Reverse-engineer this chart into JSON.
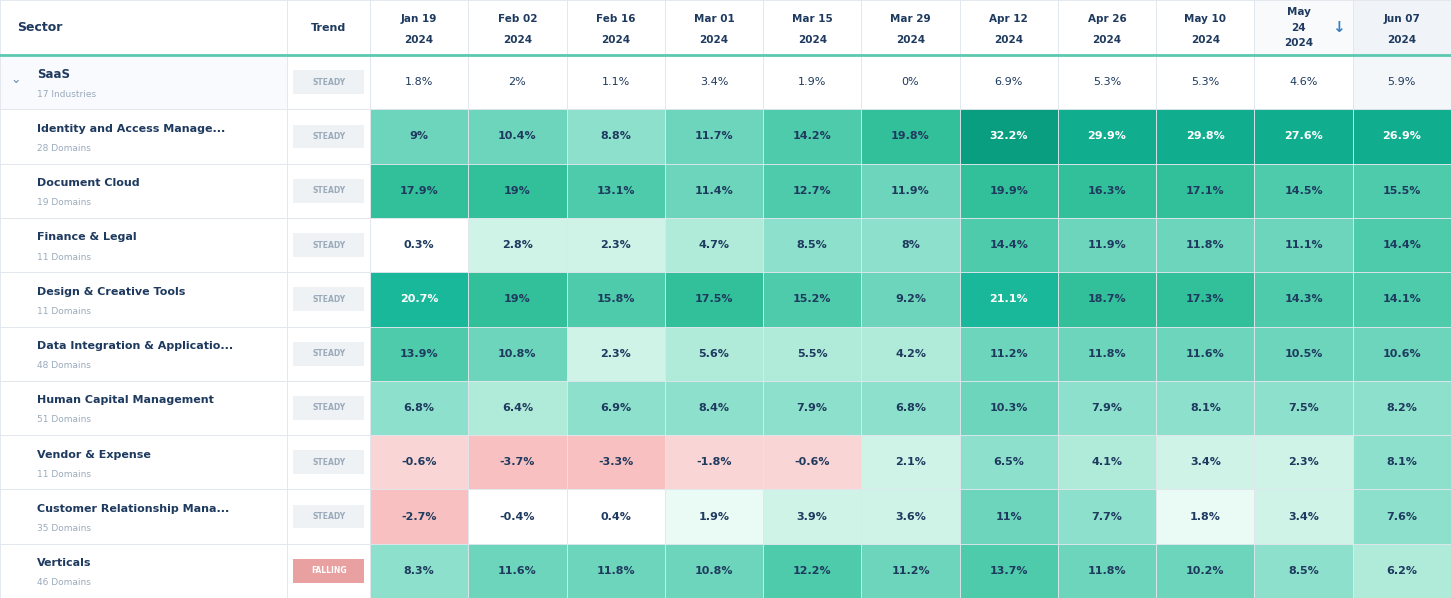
{
  "col_headers": [
    "Jan 19\n2024",
    "Feb 02\n2024",
    "Feb 16\n2024",
    "Mar 01\n2024",
    "Mar 15\n2024",
    "Mar 29\n2024",
    "Apr 12\n2024",
    "Apr 26\n2024",
    "May 10\n2024",
    "May 24\n2024",
    "Jun 07\n2024"
  ],
  "rows": [
    {
      "name": "SaaS",
      "sub": "17 Industries",
      "trend": "STEADY",
      "is_parent": true,
      "values": [
        1.8,
        2.0,
        1.1,
        3.4,
        1.9,
        0.0,
        6.9,
        5.3,
        5.3,
        4.6,
        5.9
      ],
      "labels": [
        "1.8%",
        "2%",
        "1.1%",
        "3.4%",
        "1.9%",
        "0%",
        "6.9%",
        "5.3%",
        "5.3%",
        "4.6%",
        "5.9%"
      ]
    },
    {
      "name": "Identity and Access Manage...",
      "sub": "28 Domains",
      "trend": "STEADY",
      "is_parent": false,
      "values": [
        9.0,
        10.4,
        8.8,
        11.7,
        14.2,
        19.8,
        32.2,
        29.9,
        29.8,
        27.6,
        26.9
      ],
      "labels": [
        "9%",
        "10.4%",
        "8.8%",
        "11.7%",
        "14.2%",
        "19.8%",
        "32.2%",
        "29.9%",
        "29.8%",
        "27.6%",
        "26.9%"
      ]
    },
    {
      "name": "Document Cloud",
      "sub": "19 Domains",
      "trend": "STEADY",
      "is_parent": false,
      "values": [
        17.9,
        19.0,
        13.1,
        11.4,
        12.7,
        11.9,
        19.9,
        16.3,
        17.1,
        14.5,
        15.5
      ],
      "labels": [
        "17.9%",
        "19%",
        "13.1%",
        "11.4%",
        "12.7%",
        "11.9%",
        "19.9%",
        "16.3%",
        "17.1%",
        "14.5%",
        "15.5%"
      ]
    },
    {
      "name": "Finance & Legal",
      "sub": "11 Domains",
      "trend": "STEADY",
      "is_parent": false,
      "values": [
        0.3,
        2.8,
        2.3,
        4.7,
        8.5,
        8.0,
        14.4,
        11.9,
        11.8,
        11.1,
        14.4
      ],
      "labels": [
        "0.3%",
        "2.8%",
        "2.3%",
        "4.7%",
        "8.5%",
        "8%",
        "14.4%",
        "11.9%",
        "11.8%",
        "11.1%",
        "14.4%"
      ]
    },
    {
      "name": "Design & Creative Tools",
      "sub": "11 Domains",
      "trend": "STEADY",
      "is_parent": false,
      "values": [
        20.7,
        19.0,
        15.8,
        17.5,
        15.2,
        9.2,
        21.1,
        18.7,
        17.3,
        14.3,
        14.1
      ],
      "labels": [
        "20.7%",
        "19%",
        "15.8%",
        "17.5%",
        "15.2%",
        "9.2%",
        "21.1%",
        "18.7%",
        "17.3%",
        "14.3%",
        "14.1%"
      ]
    },
    {
      "name": "Data Integration & Applicatio...",
      "sub": "48 Domains",
      "trend": "STEADY",
      "is_parent": false,
      "values": [
        13.9,
        10.8,
        2.3,
        5.6,
        5.5,
        4.2,
        11.2,
        11.8,
        11.6,
        10.5,
        10.6
      ],
      "labels": [
        "13.9%",
        "10.8%",
        "2.3%",
        "5.6%",
        "5.5%",
        "4.2%",
        "11.2%",
        "11.8%",
        "11.6%",
        "10.5%",
        "10.6%"
      ]
    },
    {
      "name": "Human Capital Management",
      "sub": "51 Domains",
      "trend": "STEADY",
      "is_parent": false,
      "values": [
        6.8,
        6.4,
        6.9,
        8.4,
        7.9,
        6.8,
        10.3,
        7.9,
        8.1,
        7.5,
        8.2
      ],
      "labels": [
        "6.8%",
        "6.4%",
        "6.9%",
        "8.4%",
        "7.9%",
        "6.8%",
        "10.3%",
        "7.9%",
        "8.1%",
        "7.5%",
        "8.2%"
      ]
    },
    {
      "name": "Vendor & Expense",
      "sub": "11 Domains",
      "trend": "STEADY",
      "is_parent": false,
      "values": [
        -0.6,
        -3.7,
        -3.3,
        -1.8,
        -0.6,
        2.1,
        6.5,
        4.1,
        3.4,
        2.3,
        8.1
      ],
      "labels": [
        "-0.6%",
        "-3.7%",
        "-3.3%",
        "-1.8%",
        "-0.6%",
        "2.1%",
        "6.5%",
        "4.1%",
        "3.4%",
        "2.3%",
        "8.1%"
      ]
    },
    {
      "name": "Customer Relationship Mana...",
      "sub": "35 Domains",
      "trend": "STEADY",
      "is_parent": false,
      "values": [
        -2.7,
        -0.4,
        0.4,
        1.9,
        3.9,
        3.6,
        11.0,
        7.7,
        1.8,
        3.4,
        7.6
      ],
      "labels": [
        "-2.7%",
        "-0.4%",
        "0.4%",
        "1.9%",
        "3.9%",
        "3.6%",
        "11%",
        "7.7%",
        "1.8%",
        "3.4%",
        "7.6%"
      ]
    },
    {
      "name": "Verticals",
      "sub": "46 Domains",
      "trend": "FALLING",
      "is_parent": false,
      "values": [
        8.3,
        11.6,
        11.8,
        10.8,
        12.2,
        11.2,
        13.7,
        11.8,
        10.2,
        8.5,
        6.2
      ],
      "labels": [
        "8.3%",
        "11.6%",
        "11.8%",
        "10.8%",
        "12.2%",
        "11.2%",
        "13.7%",
        "11.8%",
        "10.2%",
        "8.5%",
        "6.2%"
      ]
    }
  ],
  "bg_color": "#ffffff",
  "header_text_color": "#1e3a5f",
  "sector_text_color": "#1e3a5f",
  "sub_text_color": "#9aaabb",
  "cell_text_color": "#1e3a5f",
  "separator_color": "#5bc8b0",
  "border_color": "#e0e6ec",
  "trend_steady_text": "#9aaabb",
  "trend_steady_bg": "#eef2f5",
  "trend_falling_text": "#ffffff",
  "trend_falling_bg": "#e8a0a0",
  "last_col_header_bg": "#f0f4f8"
}
